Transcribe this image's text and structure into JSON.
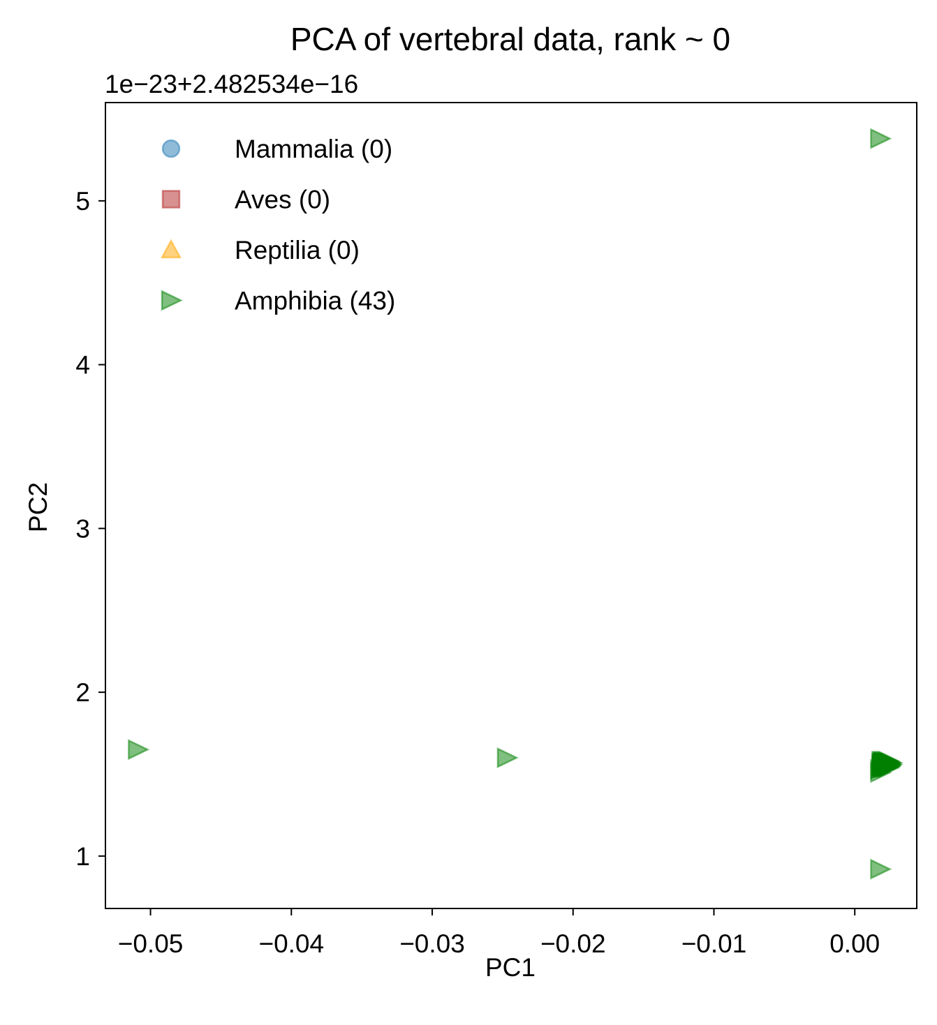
{
  "chart_data": {
    "type": "scatter",
    "title": "PCA of vertebral data, rank ~ 0",
    "xlabel": "PC1",
    "ylabel": "PC2",
    "y_offset_text": "1e−23+2.482534e−16",
    "xlim": [
      -0.0532,
      0.0044
    ],
    "ylim": [
      0.68,
      5.6
    ],
    "xticks": [
      {
        "value": -0.05,
        "label": "−0.05"
      },
      {
        "value": -0.04,
        "label": "−0.04"
      },
      {
        "value": -0.03,
        "label": "−0.03"
      },
      {
        "value": -0.02,
        "label": "−0.02"
      },
      {
        "value": -0.01,
        "label": "−0.01"
      },
      {
        "value": 0.0,
        "label": "0.00"
      }
    ],
    "yticks": [
      {
        "value": 1,
        "label": "1"
      },
      {
        "value": 2,
        "label": "2"
      },
      {
        "value": 3,
        "label": "3"
      },
      {
        "value": 4,
        "label": "4"
      },
      {
        "value": 5,
        "label": "5"
      }
    ],
    "grid": false,
    "legend_position": "upper-left",
    "series": [
      {
        "name": "Mammalia (0)",
        "marker": "circle",
        "color": "#1f77b4",
        "x": [],
        "y": []
      },
      {
        "name": "Aves (0)",
        "marker": "square",
        "color": "#b22222",
        "x": [],
        "y": []
      },
      {
        "name": "Reptilia (0)",
        "marker": "triangle-up",
        "color": "#ffa500",
        "x": [],
        "y": []
      },
      {
        "name": "Amphibia (43)",
        "marker": "triangle-right",
        "color": "#008000",
        "x": [
          0.0018,
          -0.0509,
          -0.0247,
          0.0018,
          0.0018,
          0.0018,
          0.0019,
          0.0019,
          0.0019,
          0.0019,
          0.0019,
          0.002,
          0.002,
          0.002,
          0.002,
          0.002,
          0.0021,
          0.0021,
          0.0021,
          0.0021,
          0.0021,
          0.0022,
          0.0022,
          0.0022,
          0.0022,
          0.0022,
          0.0023,
          0.0023,
          0.0023,
          0.0023,
          0.0023,
          0.0024,
          0.0024,
          0.0024,
          0.0024,
          0.0024,
          0.0025,
          0.0025,
          0.0025,
          0.0025,
          0.0025,
          0.0026,
          0.0026
        ],
        "y": [
          5.38,
          1.65,
          1.6,
          0.92,
          1.51,
          1.53,
          1.54,
          1.55,
          1.56,
          1.57,
          1.58,
          1.54,
          1.55,
          1.56,
          1.57,
          1.58,
          1.54,
          1.55,
          1.56,
          1.57,
          1.58,
          1.54,
          1.55,
          1.56,
          1.57,
          1.58,
          1.54,
          1.55,
          1.56,
          1.57,
          1.58,
          1.54,
          1.55,
          1.56,
          1.57,
          1.58,
          1.55,
          1.56,
          1.57,
          1.55,
          1.56,
          1.56,
          1.57
        ]
      }
    ]
  }
}
